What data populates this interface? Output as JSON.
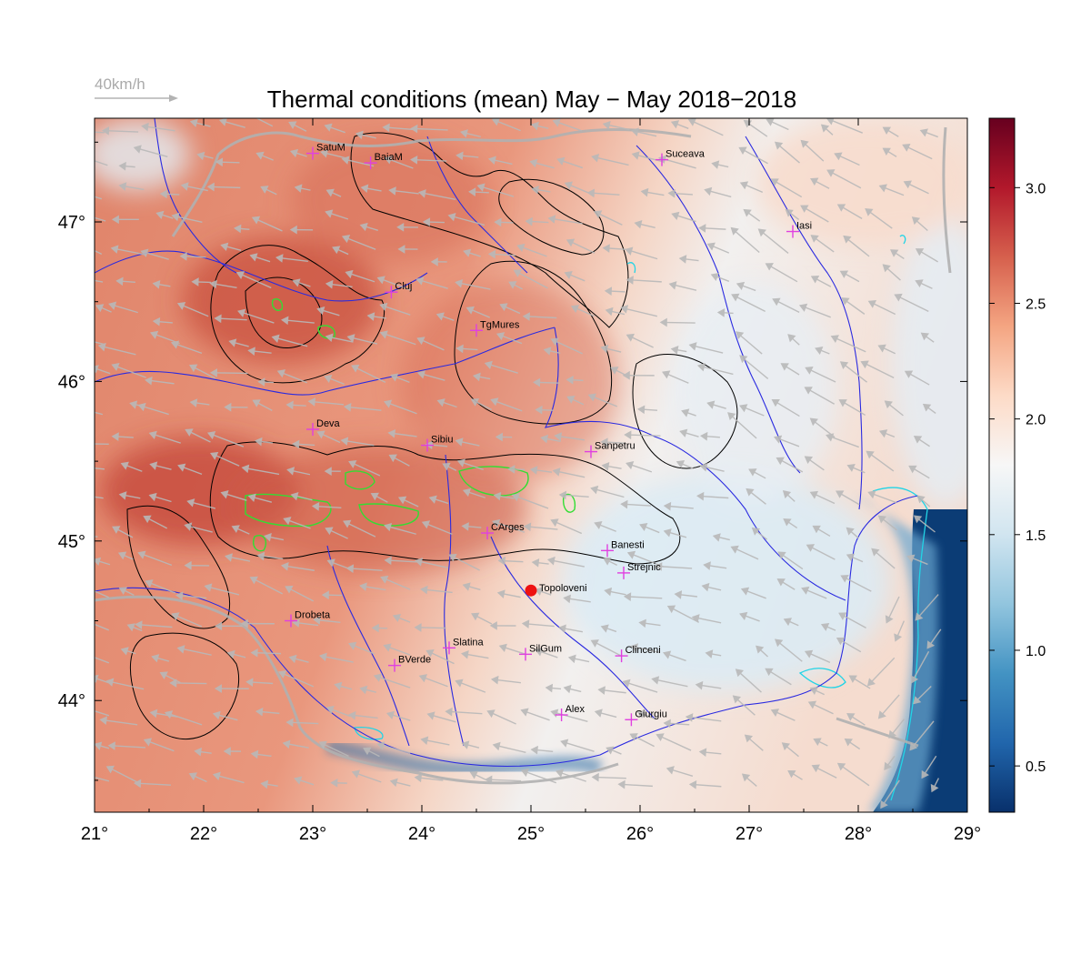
{
  "title": "Thermal conditions (mean) May − May  2018−2018",
  "wind_legend": {
    "label": "40km/h",
    "color": "#b3b3b3"
  },
  "map": {
    "lon_range": [
      21,
      29
    ],
    "lat_range": [
      43.3,
      47.65
    ],
    "lon_ticks": [
      {
        "value": 21,
        "label": "21°"
      },
      {
        "value": 22,
        "label": "22°"
      },
      {
        "value": 23,
        "label": "23°"
      },
      {
        "value": 24,
        "label": "24°"
      },
      {
        "value": 25,
        "label": "25°"
      },
      {
        "value": 26,
        "label": "26°"
      },
      {
        "value": 27,
        "label": "27°"
      },
      {
        "value": 28,
        "label": "28°"
      },
      {
        "value": 29,
        "label": "29°"
      }
    ],
    "lat_ticks": [
      {
        "value": 44,
        "label": "44°"
      },
      {
        "value": 45,
        "label": "45°"
      },
      {
        "value": 46,
        "label": "46°"
      },
      {
        "value": 47,
        "label": "47°"
      }
    ],
    "colors": {
      "rivers": "#2a2ae0",
      "borders": "#b0b0b0",
      "contours": "#000000",
      "highlight_contours": "#33dd33",
      "coast": "#22d4e6",
      "cities": "#e040e0",
      "marker": "#ee1111"
    }
  },
  "colorbar": {
    "range": [
      0.3,
      3.3
    ],
    "ticks": [
      {
        "value": 0.5,
        "label": "0.5"
      },
      {
        "value": 1.0,
        "label": "1.0"
      },
      {
        "value": 1.5,
        "label": "1.5"
      },
      {
        "value": 2.0,
        "label": "2.0"
      },
      {
        "value": 2.5,
        "label": "2.5"
      },
      {
        "value": 3.0,
        "label": "3.0"
      }
    ],
    "stops": [
      "#08306b",
      "#2166ac",
      "#4393c3",
      "#92c5de",
      "#d1e5f0",
      "#f7f7f7",
      "#fddbc7",
      "#f4a582",
      "#d6604d",
      "#b2182b",
      "#67001f"
    ]
  },
  "cities": [
    {
      "name": "SatuM",
      "lon": 23.0,
      "lat": 47.43
    },
    {
      "name": "BaiaM",
      "lon": 23.53,
      "lat": 47.37
    },
    {
      "name": "Suceava",
      "lon": 26.2,
      "lat": 47.39
    },
    {
      "name": "Iasi",
      "lon": 27.4,
      "lat": 46.94
    },
    {
      "name": "Cluj",
      "lon": 23.72,
      "lat": 46.56
    },
    {
      "name": "TgMures",
      "lon": 24.5,
      "lat": 46.32
    },
    {
      "name": "Deva",
      "lon": 23.0,
      "lat": 45.7
    },
    {
      "name": "Sibiu",
      "lon": 24.05,
      "lat": 45.6
    },
    {
      "name": "Sanpetru",
      "lon": 25.55,
      "lat": 45.56
    },
    {
      "name": "CArges",
      "lon": 24.6,
      "lat": 45.05
    },
    {
      "name": "Banesti",
      "lon": 25.7,
      "lat": 44.94
    },
    {
      "name": "Strejnic",
      "lon": 25.85,
      "lat": 44.8
    },
    {
      "name": "Drobeta",
      "lon": 22.8,
      "lat": 44.5
    },
    {
      "name": "Slatina",
      "lon": 24.25,
      "lat": 44.33
    },
    {
      "name": "SilGum",
      "lon": 24.95,
      "lat": 44.29
    },
    {
      "name": "Clinceni",
      "lon": 25.83,
      "lat": 44.28
    },
    {
      "name": "BVerde",
      "lon": 23.75,
      "lat": 44.22
    },
    {
      "name": "Alex",
      "lon": 25.28,
      "lat": 43.91
    },
    {
      "name": "Giurgiu",
      "lon": 25.92,
      "lat": 43.88
    }
  ],
  "marker": {
    "name": "Topoloveni",
    "lon": 25.0,
    "lat": 44.69
  }
}
